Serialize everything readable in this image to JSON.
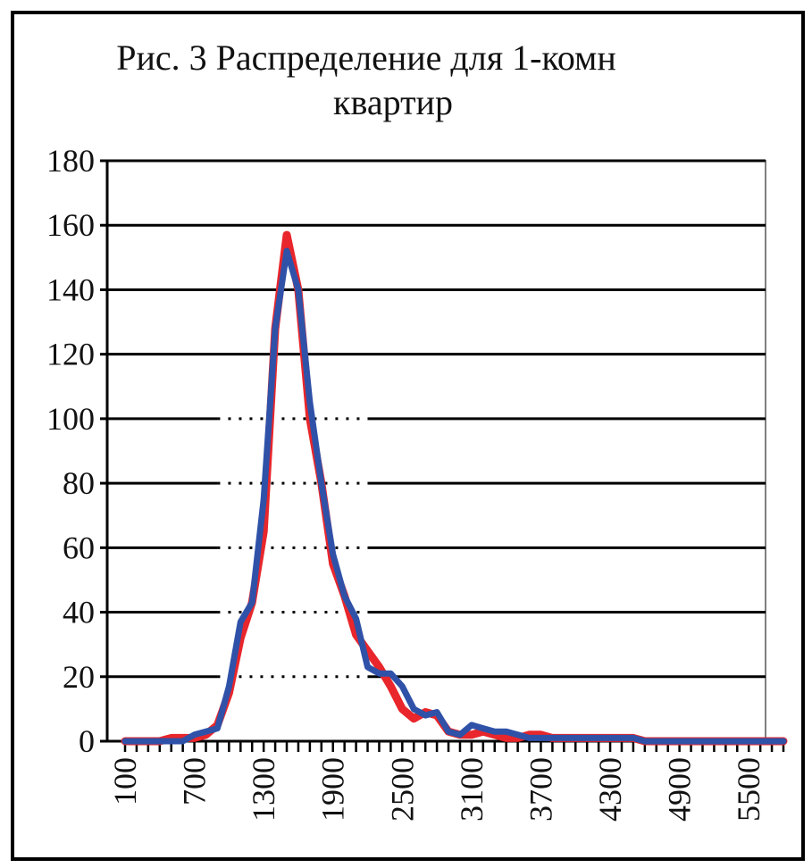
{
  "chart_data": {
    "type": "line",
    "title_line1": "Рис. 3 Распределение для 1-комн",
    "title_line2": "квартир",
    "ylim": [
      0,
      180
    ],
    "yticks": [
      0,
      20,
      40,
      60,
      80,
      100,
      120,
      140,
      160,
      180
    ],
    "xticks": [
      100,
      700,
      1300,
      1900,
      2500,
      3100,
      3700,
      4300,
      4900,
      5500
    ],
    "x": [
      100,
      200,
      300,
      400,
      500,
      600,
      700,
      800,
      900,
      1000,
      1100,
      1200,
      1300,
      1400,
      1500,
      1600,
      1700,
      1800,
      1900,
      2000,
      2100,
      2200,
      2300,
      2400,
      2500,
      2600,
      2700,
      2800,
      2900,
      3000,
      3100,
      3200,
      3300,
      3400,
      3500,
      3600,
      3700,
      3800,
      3900,
      4000,
      4100,
      4200,
      4300,
      4400,
      4500,
      4600,
      4700,
      4800,
      4900,
      5000,
      5100,
      5200,
      5300,
      5400,
      5500,
      5600,
      5700,
      5800
    ],
    "series": [
      {
        "color": "#e8262b",
        "values": [
          0,
          0,
          0,
          0,
          1,
          1,
          1,
          2,
          5,
          15,
          32,
          43,
          65,
          128,
          157,
          140,
          100,
          80,
          55,
          45,
          33,
          28,
          23,
          17,
          10,
          7,
          9,
          8,
          3,
          2,
          2,
          3,
          2,
          1,
          1,
          2,
          2,
          1,
          1,
          1,
          1,
          1,
          1,
          1,
          1,
          0,
          0,
          0,
          0,
          0,
          0,
          0,
          0,
          0,
          0,
          0,
          0,
          0
        ]
      },
      {
        "color": "#2f52a8",
        "values": [
          0,
          0,
          0,
          0,
          0,
          0,
          2,
          3,
          4,
          17,
          37,
          43,
          75,
          128,
          152,
          140,
          105,
          80,
          58,
          45,
          38,
          23,
          21,
          21,
          17,
          10,
          8,
          9,
          3,
          2,
          5,
          4,
          3,
          3,
          2,
          1,
          1,
          1,
          1,
          1,
          1,
          1,
          1,
          1,
          1,
          0,
          0,
          0,
          0,
          0,
          0,
          0,
          0,
          0,
          0,
          0,
          0,
          0
        ]
      }
    ],
    "dotted_from_y": 20,
    "dotted_to_y": 100,
    "colors": {
      "grid": "#000000",
      "plot_border": "#808080"
    }
  }
}
